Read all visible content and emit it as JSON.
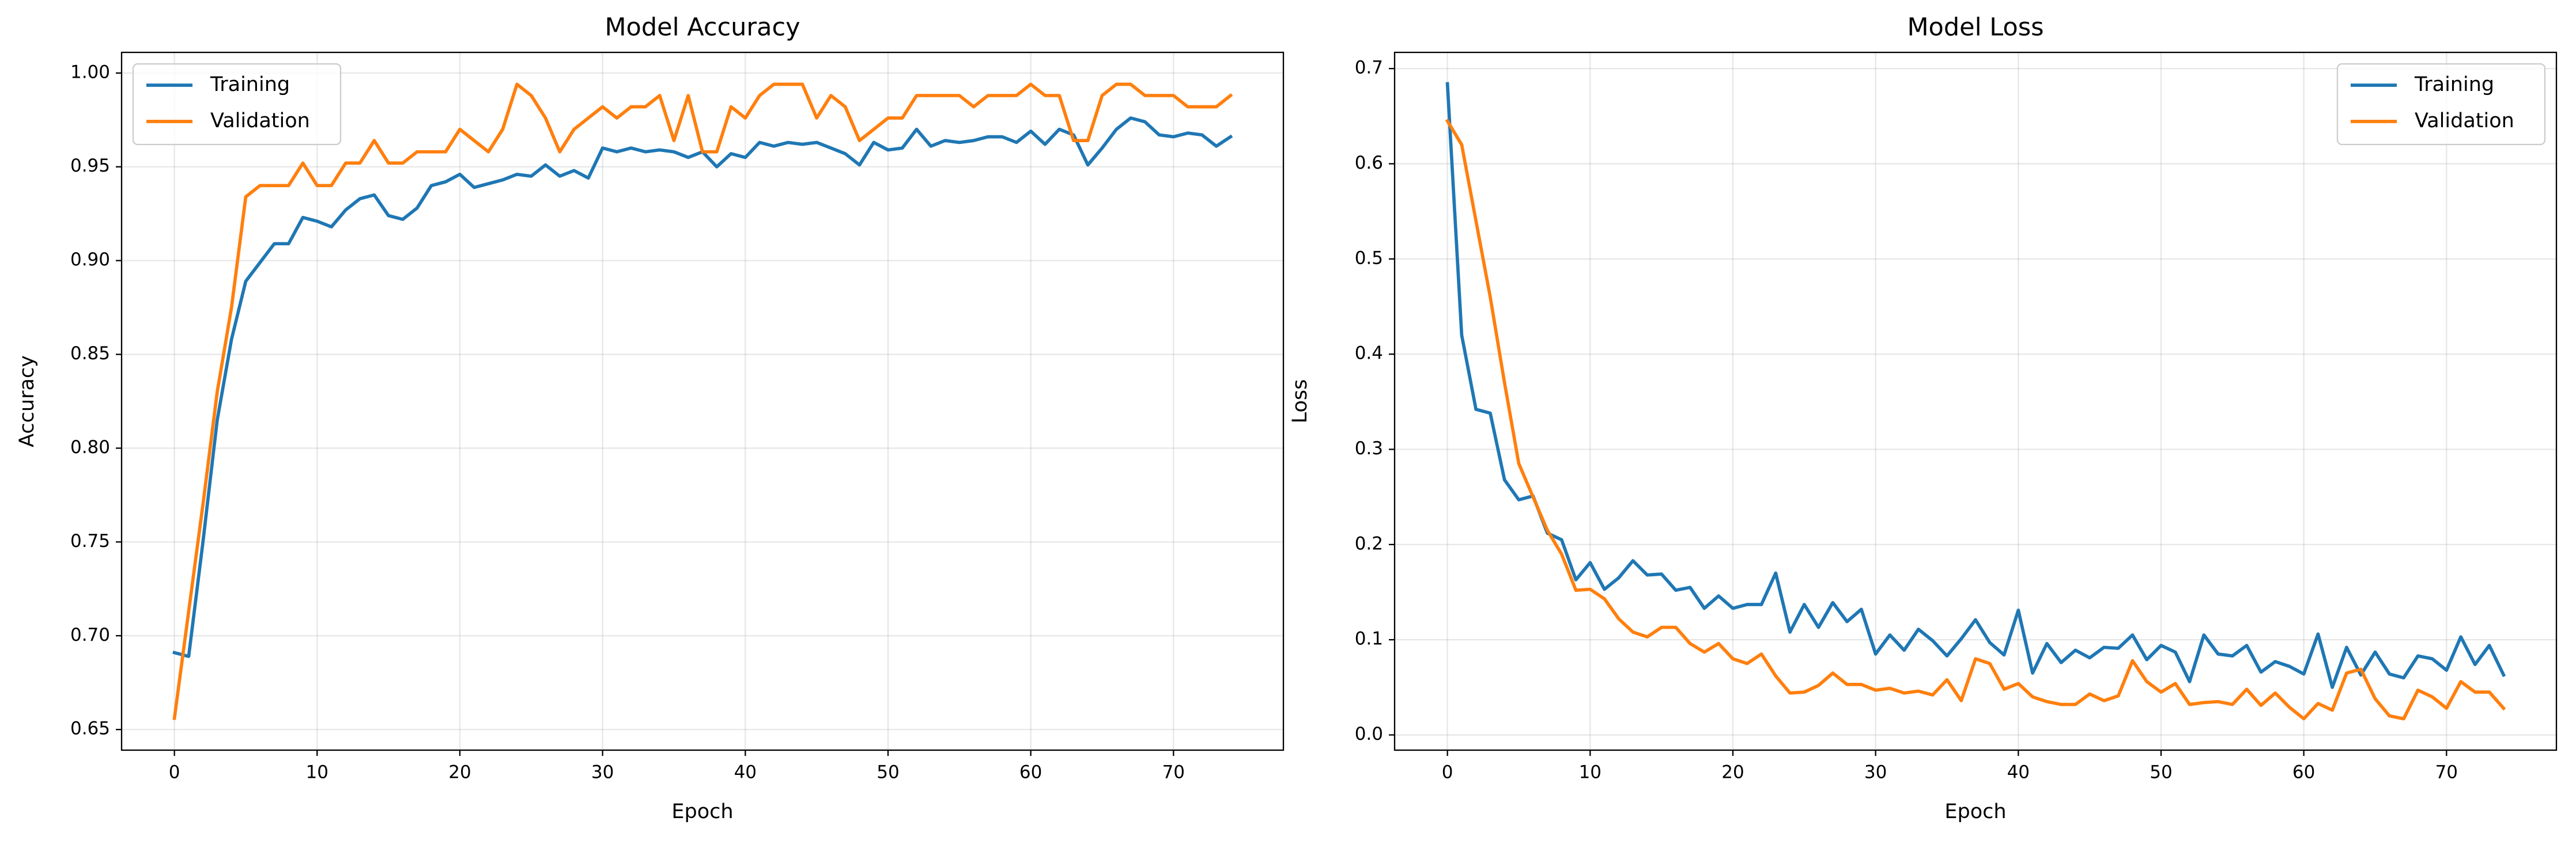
{
  "chart_data": [
    {
      "type": "line",
      "title": "Model Accuracy",
      "xlabel": "Epoch",
      "ylabel": "Accuracy",
      "x": [
        0,
        1,
        2,
        3,
        4,
        5,
        6,
        7,
        8,
        9,
        10,
        11,
        12,
        13,
        14,
        15,
        16,
        17,
        18,
        19,
        20,
        21,
        22,
        23,
        24,
        25,
        26,
        27,
        28,
        29,
        30,
        31,
        32,
        33,
        34,
        35,
        36,
        37,
        38,
        39,
        40,
        41,
        42,
        43,
        44,
        45,
        46,
        47,
        48,
        49,
        50,
        51,
        52,
        53,
        54,
        55,
        56,
        57,
        58,
        59,
        60,
        61,
        62,
        63,
        64,
        65,
        66,
        67,
        68,
        69,
        70,
        71,
        72,
        73,
        74
      ],
      "series": [
        {
          "name": "Training",
          "color": "#1f77b4",
          "values": [
            0.691,
            0.689,
            0.75,
            0.815,
            0.858,
            0.889,
            0.899,
            0.909,
            0.909,
            0.923,
            0.921,
            0.918,
            0.927,
            0.933,
            0.935,
            0.924,
            0.922,
            0.928,
            0.94,
            0.942,
            0.946,
            0.939,
            0.941,
            0.943,
            0.946,
            0.945,
            0.951,
            0.945,
            0.948,
            0.944,
            0.96,
            0.958,
            0.96,
            0.958,
            0.959,
            0.958,
            0.955,
            0.958,
            0.95,
            0.957,
            0.955,
            0.963,
            0.961,
            0.963,
            0.962,
            0.963,
            0.96,
            0.957,
            0.951,
            0.963,
            0.959,
            0.96,
            0.97,
            0.961,
            0.964,
            0.963,
            0.964,
            0.966,
            0.966,
            0.963,
            0.969,
            0.962,
            0.97,
            0.967,
            0.951,
            0.96,
            0.97,
            0.976,
            0.974,
            0.967,
            0.966,
            0.968,
            0.967,
            0.961,
            0.966
          ]
        },
        {
          "name": "Validation",
          "color": "#ff7f0e",
          "values": [
            0.656,
            0.713,
            0.77,
            0.83,
            0.875,
            0.934,
            0.94,
            0.94,
            0.94,
            0.952,
            0.94,
            0.94,
            0.952,
            0.952,
            0.964,
            0.952,
            0.952,
            0.958,
            0.958,
            0.958,
            0.97,
            0.964,
            0.958,
            0.97,
            0.994,
            0.988,
            0.976,
            0.958,
            0.97,
            0.976,
            0.982,
            0.976,
            0.982,
            0.982,
            0.988,
            0.964,
            0.988,
            0.958,
            0.958,
            0.982,
            0.976,
            0.988,
            0.994,
            0.994,
            0.994,
            0.976,
            0.988,
            0.982,
            0.964,
            0.97,
            0.976,
            0.976,
            0.988,
            0.988,
            0.988,
            0.988,
            0.982,
            0.988,
            0.988,
            0.988,
            0.994,
            0.988,
            0.988,
            0.964,
            0.964,
            0.988,
            0.994,
            0.994,
            0.988,
            0.988,
            0.988,
            0.982,
            0.982,
            0.982,
            0.988
          ]
        }
      ],
      "xlim": [
        -3.7,
        77.7
      ],
      "xticks": [
        0,
        10,
        20,
        30,
        40,
        50,
        60,
        70
      ],
      "ylim": [
        0.639,
        1.011
      ],
      "yticks": [
        0.65,
        {
          "value": 0.7,
          "label": "0.70"
        },
        0.75,
        {
          "value": 0.8,
          "label": "0.80"
        },
        0.85,
        {
          "value": 0.9,
          "label": "0.90"
        },
        0.95,
        {
          "value": 1.0,
          "label": "1.00"
        }
      ],
      "grid": true,
      "legend": "upper left"
    },
    {
      "type": "line",
      "title": "Model Loss",
      "xlabel": "Epoch",
      "ylabel": "Loss",
      "x": [
        0,
        1,
        2,
        3,
        4,
        5,
        6,
        7,
        8,
        9,
        10,
        11,
        12,
        13,
        14,
        15,
        16,
        17,
        18,
        19,
        20,
        21,
        22,
        23,
        24,
        25,
        26,
        27,
        28,
        29,
        30,
        31,
        32,
        33,
        34,
        35,
        36,
        37,
        38,
        39,
        40,
        41,
        42,
        43,
        44,
        45,
        46,
        47,
        48,
        49,
        50,
        51,
        52,
        53,
        54,
        55,
        56,
        57,
        58,
        59,
        60,
        61,
        62,
        63,
        64,
        65,
        66,
        67,
        68,
        69,
        70,
        71,
        72,
        73,
        74
      ],
      "series": [
        {
          "name": "Training",
          "color": "#1f77b4",
          "values": [
            0.684,
            0.42,
            0.342,
            0.338,
            0.268,
            0.247,
            0.251,
            0.212,
            0.205,
            0.163,
            0.181,
            0.153,
            0.165,
            0.183,
            0.168,
            0.169,
            0.152,
            0.155,
            0.133,
            0.146,
            0.133,
            0.137,
            0.137,
            0.17,
            0.108,
            0.137,
            0.113,
            0.139,
            0.119,
            0.132,
            0.085,
            0.105,
            0.089,
            0.111,
            0.099,
            0.083,
            0.101,
            0.121,
            0.097,
            0.084,
            0.131,
            0.065,
            0.096,
            0.076,
            0.089,
            0.081,
            0.092,
            0.091,
            0.105,
            0.079,
            0.094,
            0.087,
            0.056,
            0.105,
            0.085,
            0.083,
            0.094,
            0.066,
            0.077,
            0.072,
            0.064,
            0.106,
            0.05,
            0.092,
            0.063,
            0.087,
            0.064,
            0.06,
            0.083,
            0.08,
            0.068,
            0.103,
            0.074,
            0.094,
            0.063
          ]
        },
        {
          "name": "Validation",
          "color": "#ff7f0e",
          "values": [
            0.645,
            0.62,
            0.54,
            0.46,
            0.37,
            0.285,
            0.25,
            0.215,
            0.19,
            0.152,
            0.153,
            0.143,
            0.122,
            0.108,
            0.103,
            0.113,
            0.113,
            0.096,
            0.087,
            0.096,
            0.08,
            0.075,
            0.085,
            0.062,
            0.044,
            0.045,
            0.052,
            0.065,
            0.053,
            0.053,
            0.047,
            0.049,
            0.044,
            0.046,
            0.042,
            0.058,
            0.036,
            0.08,
            0.075,
            0.048,
            0.054,
            0.04,
            0.035,
            0.032,
            0.032,
            0.043,
            0.036,
            0.041,
            0.078,
            0.056,
            0.045,
            0.054,
            0.032,
            0.034,
            0.035,
            0.032,
            0.048,
            0.031,
            0.044,
            0.029,
            0.017,
            0.033,
            0.026,
            0.065,
            0.069,
            0.038,
            0.02,
            0.017,
            0.047,
            0.04,
            0.028,
            0.056,
            0.045,
            0.045,
            0.028
          ]
        }
      ],
      "xlim": [
        -3.7,
        77.7
      ],
      "xticks": [
        0,
        10,
        20,
        30,
        40,
        50,
        60,
        70
      ],
      "ylim": [
        -0.016,
        0.717
      ],
      "yticks": [
        {
          "value": 0,
          "label": "0.0"
        },
        0.1,
        0.2,
        0.3,
        0.4,
        0.5,
        0.6,
        0.7
      ],
      "grid": true,
      "legend": "upper right"
    }
  ]
}
